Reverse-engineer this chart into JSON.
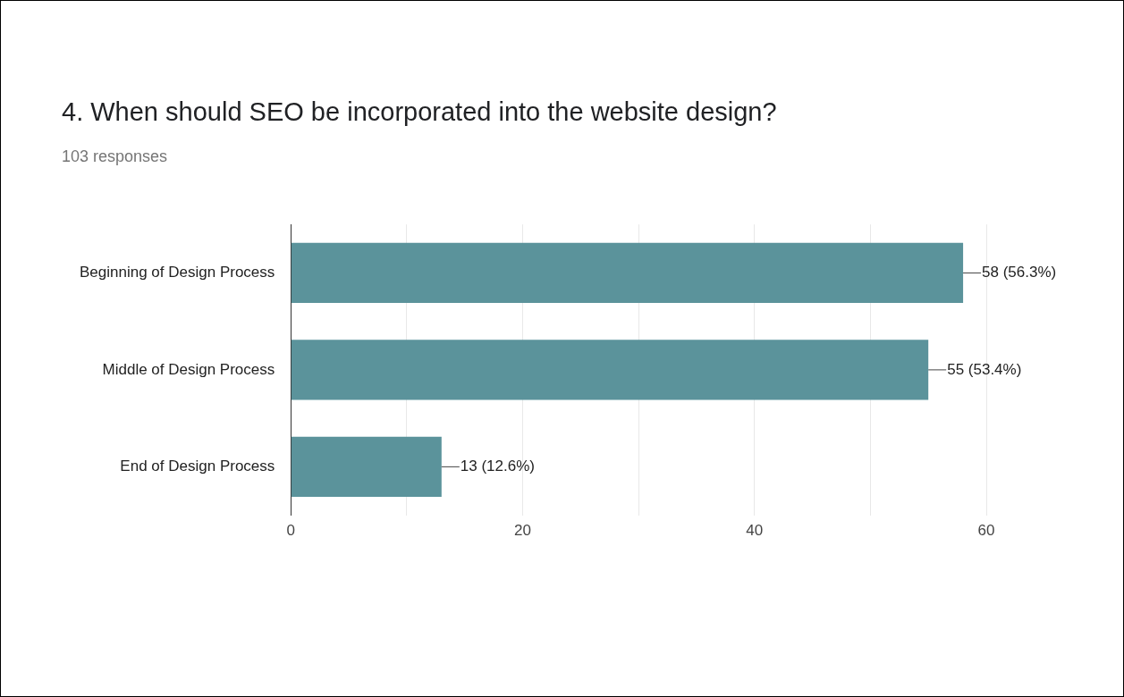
{
  "chart_data": {
    "type": "bar",
    "orientation": "horizontal",
    "title": "4. When should SEO be incorporated into the website design?",
    "subtitle": "103 responses",
    "categories": [
      "Beginning of Design Process",
      "Middle of Design Process",
      "End of Design Process"
    ],
    "values": [
      58,
      55,
      13
    ],
    "value_labels": [
      "58 (56.3%)",
      "55 (53.4%)",
      "13 (12.6%)"
    ],
    "color": "#5b939b",
    "xlim": [
      0,
      60
    ],
    "xticks": [
      0,
      {
        "value": 10,
        "label": null
      },
      20,
      {
        "value": 30,
        "label": null
      },
      40,
      {
        "value": 50,
        "label": null
      },
      60
    ],
    "grid": "x",
    "legend": false
  }
}
